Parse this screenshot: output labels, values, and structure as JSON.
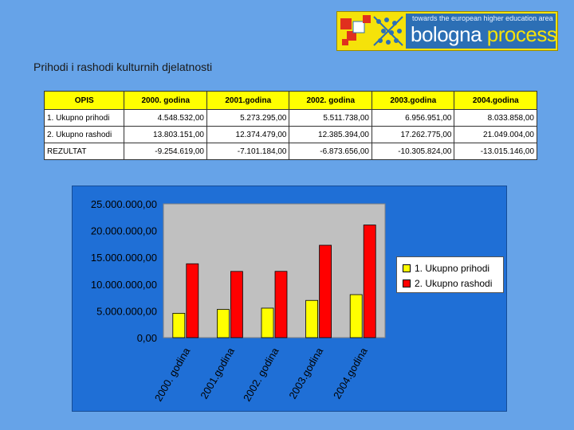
{
  "logo": {
    "tagline": "towards the european higher education area",
    "word_part1": "bologna",
    "word_part2": "process"
  },
  "page": {
    "title": "Prihodi i rashodi kulturnih djelatnosti"
  },
  "table": {
    "header": [
      "OPIS",
      "2000. godina",
      "2001.godina",
      "2002. godina",
      "2003.godina",
      "2004.godina"
    ],
    "rows": [
      [
        "1. Ukupno prihodi",
        "4.548.532,00",
        "5.273.295,00",
        "5.511.738,00",
        "6.956.951,00",
        "8.033.858,00"
      ],
      [
        "2. Ukupno rashodi",
        "13.803.151,00",
        "12.374.479,00",
        "12.385.394,00",
        "17.262.775,00",
        "21.049.004,00"
      ],
      [
        "REZULTAT",
        "-9.254.619,00",
        "-7.101.184,00",
        "-6.873.656,00",
        "-10.305.824,00",
        "-13.015.146,00"
      ]
    ]
  },
  "chart_data": {
    "type": "bar",
    "categories": [
      "2000. godina",
      "2001.godina",
      "2002. godina",
      "2003.godina",
      "2004.godina"
    ],
    "series": [
      {
        "name": "1. Ukupno prihodi",
        "values": [
          4548532,
          5273295,
          5511738,
          6956951,
          8033858
        ],
        "color": "#ffff00"
      },
      {
        "name": "2. Ukupno rashodi",
        "values": [
          13803151,
          12374479,
          12385394,
          17262775,
          21049004
        ],
        "color": "#ff0000"
      }
    ],
    "yticks": [
      "0,00",
      "5.000.000,00",
      "10.000.000,00",
      "15.000.000,00",
      "20.000.000,00",
      "25.000.000,00"
    ],
    "ylim": [
      0,
      25000000
    ],
    "grid": false,
    "legend_position": "right",
    "plot_bg": "#c0c0c0"
  }
}
